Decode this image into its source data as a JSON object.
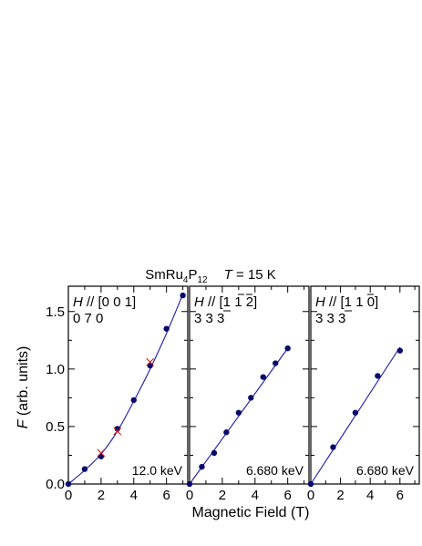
{
  "title": {
    "compound": "SmRu",
    "sub1": "4",
    "p": "P",
    "sub2": "12",
    "temp_var": "T",
    "temp_rest": " = 15 K"
  },
  "xlabel": "Magnetic Field  (T)",
  "ylabel": {
    "var": "F",
    "rest": "  (arb. units)"
  },
  "colors": {
    "fit_line": "#1a1aa8",
    "points": "#0a0a6e",
    "cross": "#c81e1e",
    "axis": "#000000"
  },
  "chart_data": [
    {
      "type": "scatter",
      "panel": "left",
      "field_label": "H // [0 0 1]",
      "reflection_label": "0 7 0",
      "energy_label": "12.0 keV",
      "xlim": [
        0,
        7.3
      ],
      "ylim": [
        0,
        1.72
      ],
      "xticks": [
        0,
        2,
        4,
        6
      ],
      "yticks": [
        0.0,
        0.5,
        1.0,
        1.5
      ],
      "ytick_labels": [
        "0.0",
        "0.5",
        "1.0",
        "1.5"
      ],
      "series": [
        {
          "marker": "dot",
          "x": [
            0,
            1,
            2,
            3,
            4,
            5,
            6,
            7
          ],
          "y": [
            0,
            0.13,
            0.24,
            0.48,
            0.73,
            1.03,
            1.35,
            1.64
          ]
        },
        {
          "marker": "cross",
          "x": [
            2,
            3,
            5
          ],
          "y": [
            0.27,
            0.46,
            1.06
          ]
        }
      ],
      "fit": {
        "x": [
          0,
          1,
          2,
          3,
          4,
          5,
          6,
          7
        ],
        "y": [
          0,
          0.12,
          0.26,
          0.46,
          0.72,
          1.0,
          1.31,
          1.65
        ]
      }
    },
    {
      "type": "scatter",
      "panel": "middle",
      "field_label": "H // [1 1 2]",
      "reflection_label": "3 3 3",
      "energy_label": "6.680 keV",
      "xlim": [
        0,
        7.3
      ],
      "ylim": [
        0,
        1.72
      ],
      "xticks": [
        0,
        2,
        4,
        6
      ],
      "series": [
        {
          "marker": "dot",
          "x": [
            0,
            0.75,
            1.5,
            2.25,
            3,
            3.75,
            4.5,
            5.25,
            6
          ],
          "y": [
            0,
            0.15,
            0.27,
            0.45,
            0.62,
            0.75,
            0.93,
            1.05,
            1.18
          ]
        }
      ],
      "fit": {
        "x": [
          0,
          6
        ],
        "y": [
          0,
          1.18
        ]
      }
    },
    {
      "type": "scatter",
      "panel": "right",
      "field_label": "H // [1 1 0]",
      "reflection_label": "3 3 3",
      "energy_label": "6.680 keV",
      "xlim": [
        0,
        7.3
      ],
      "ylim": [
        0,
        1.72
      ],
      "xticks": [
        0,
        2,
        4,
        6
      ],
      "series": [
        {
          "marker": "dot",
          "x": [
            0,
            1.5,
            3,
            4.5,
            6
          ],
          "y": [
            0,
            0.32,
            0.62,
            0.94,
            1.16
          ]
        }
      ],
      "fit": {
        "x": [
          0,
          6
        ],
        "y": [
          0,
          1.19
        ]
      }
    }
  ]
}
